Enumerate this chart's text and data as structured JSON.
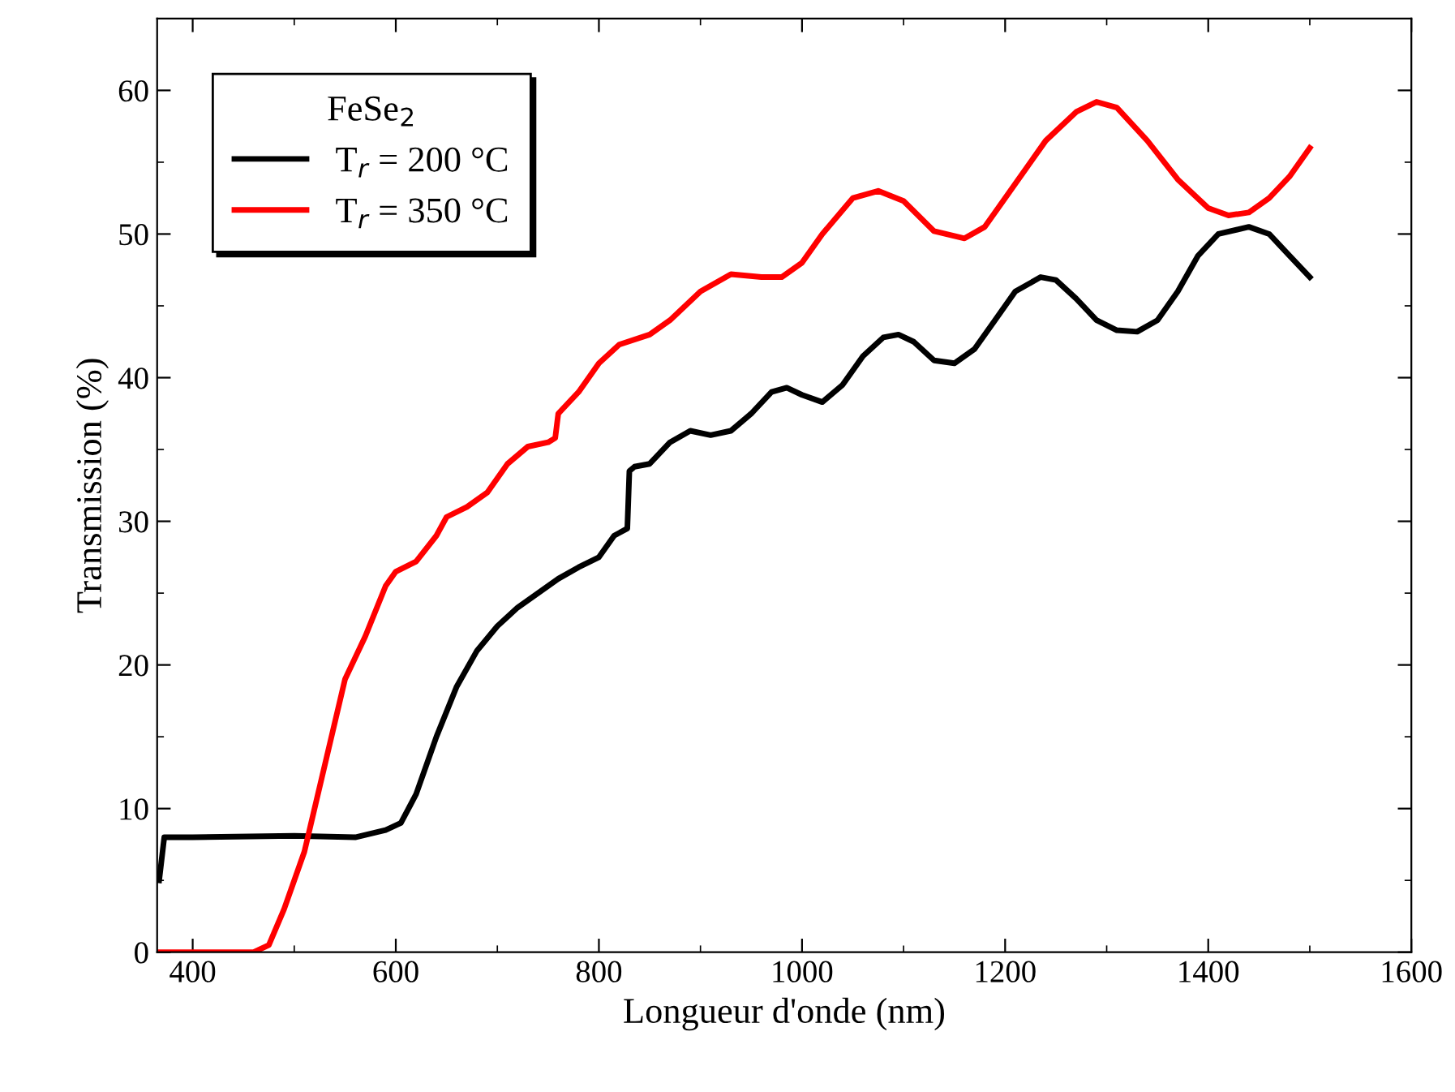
{
  "chart_data": {
    "type": "line",
    "xlabel": "Longueur d'onde (nm)",
    "ylabel": "Transmission (%)",
    "legend_title": "FeSe$_{2}$",
    "legend": "top left",
    "grid": false,
    "xlim": [
      365,
      1600
    ],
    "ylim": [
      0,
      65
    ],
    "xticks": [
      400,
      600,
      800,
      1000,
      1200,
      1400,
      1600
    ],
    "yticks": [
      0,
      10,
      20,
      30,
      40,
      50,
      60
    ],
    "series": [
      {
        "name": "T$_{r}$ = 200 °C",
        "color": "#000000",
        "x": [
          367,
          372,
          400,
          500,
          560,
          590,
          605,
          620,
          640,
          660,
          680,
          700,
          720,
          740,
          760,
          780,
          800,
          815,
          828,
          830,
          835,
          850,
          870,
          890,
          910,
          930,
          950,
          970,
          985,
          1000,
          1020,
          1040,
          1060,
          1080,
          1095,
          1110,
          1130,
          1150,
          1170,
          1190,
          1210,
          1235,
          1250,
          1270,
          1290,
          1310,
          1330,
          1350,
          1370,
          1390,
          1410,
          1440,
          1460,
          1480,
          1500
        ],
        "values": [
          5,
          8,
          8,
          8.1,
          8,
          8.5,
          9,
          11,
          15,
          18.5,
          21,
          22.7,
          24,
          25,
          26,
          26.8,
          27.5,
          29,
          29.5,
          33.5,
          33.8,
          34,
          35.5,
          36.3,
          36,
          36.3,
          37.5,
          39,
          39.3,
          38.8,
          38.3,
          39.5,
          41.5,
          42.8,
          43,
          42.5,
          41.2,
          41,
          42,
          44,
          46,
          47,
          46.8,
          45.5,
          44,
          43.3,
          43.2,
          44,
          46,
          48.5,
          50,
          50.5,
          50,
          48.5,
          47
        ]
      },
      {
        "name": "T$_{r}$ = 350 °C",
        "color": "#ff0000",
        "x": [
          367,
          460,
          475,
          490,
          510,
          530,
          550,
          570,
          590,
          600,
          620,
          640,
          650,
          670,
          690,
          710,
          730,
          750,
          757,
          760,
          780,
          800,
          820,
          850,
          870,
          900,
          930,
          960,
          980,
          1000,
          1020,
          1050,
          1075,
          1100,
          1130,
          1160,
          1180,
          1210,
          1240,
          1270,
          1290,
          1310,
          1340,
          1370,
          1400,
          1420,
          1440,
          1460,
          1480,
          1500
        ],
        "values": [
          0,
          0,
          0.5,
          3,
          7,
          13,
          19,
          22,
          25.5,
          26.5,
          27.2,
          29,
          30.3,
          31,
          32,
          34,
          35.2,
          35.5,
          35.8,
          37.5,
          39,
          41,
          42.3,
          43,
          44,
          46,
          47.2,
          47,
          47,
          48,
          50,
          52.5,
          53,
          52.3,
          50.2,
          49.7,
          50.5,
          53.5,
          56.5,
          58.5,
          59.2,
          58.8,
          56.5,
          53.8,
          51.8,
          51.3,
          51.5,
          52.5,
          54,
          56
        ]
      }
    ]
  }
}
